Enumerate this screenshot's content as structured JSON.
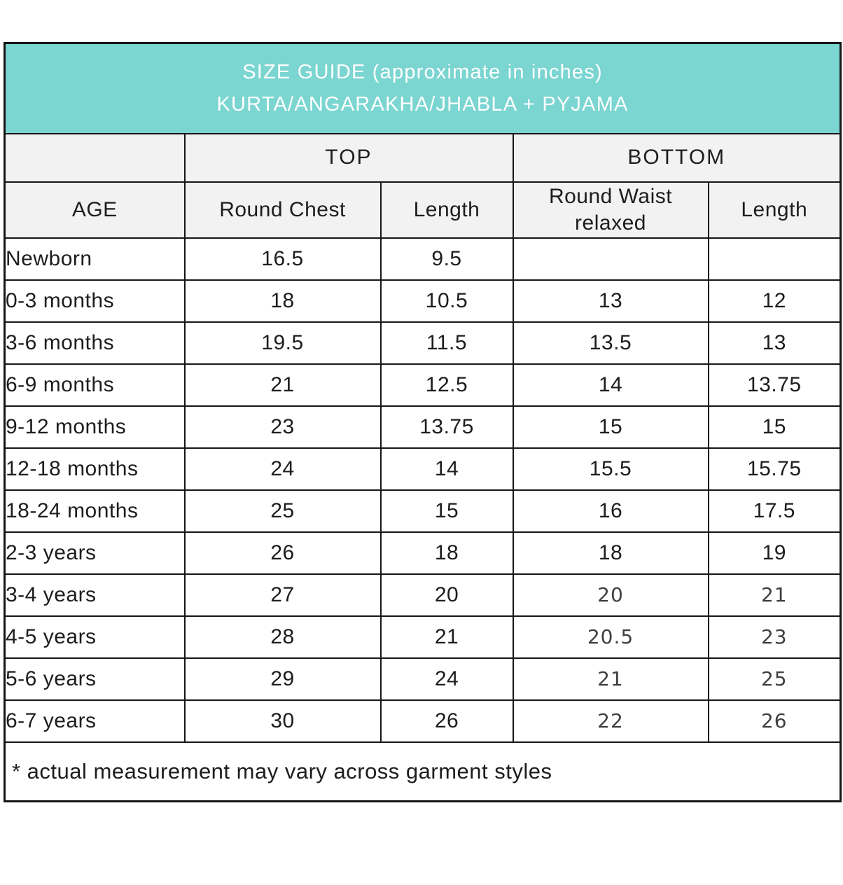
{
  "header": {
    "title_line1": "SIZE GUIDE (approximate in inches)",
    "title_line2": "KURTA/ANGARAKHA/JHABLA + PYJAMA"
  },
  "table": {
    "group_headers": {
      "top": "TOP",
      "bottom": "BOTTOM"
    },
    "columns": [
      "AGE",
      "Round Chest",
      "Length",
      "Round Waist relaxed",
      "Length"
    ],
    "rows": [
      {
        "age": "Newborn",
        "round_chest": "16.5",
        "top_length": "9.5",
        "round_waist": "",
        "bottom_length": ""
      },
      {
        "age": "0-3 months",
        "round_chest": "18",
        "top_length": "10.5",
        "round_waist": "13",
        "bottom_length": "12"
      },
      {
        "age": "3-6 months",
        "round_chest": "19.5",
        "top_length": "11.5",
        "round_waist": "13.5",
        "bottom_length": "13"
      },
      {
        "age": "6-9 months",
        "round_chest": "21",
        "top_length": "12.5",
        "round_waist": "14",
        "bottom_length": "13.75"
      },
      {
        "age": "9-12 months",
        "round_chest": "23",
        "top_length": "13.75",
        "round_waist": "15",
        "bottom_length": "15"
      },
      {
        "age": "12-18 months",
        "round_chest": "24",
        "top_length": "14",
        "round_waist": "15.5",
        "bottom_length": "15.75"
      },
      {
        "age": "18-24 months",
        "round_chest": "25",
        "top_length": "15",
        "round_waist": "16",
        "bottom_length": "17.5"
      },
      {
        "age": "2-3 years",
        "round_chest": "26",
        "top_length": "18",
        "round_waist": "18",
        "bottom_length": "19"
      },
      {
        "age": "3-4 years",
        "round_chest": "27",
        "top_length": "20",
        "round_waist": "20",
        "bottom_length": "21"
      },
      {
        "age": "4-5 years",
        "round_chest": "28",
        "top_length": "21",
        "round_waist": "20.5",
        "bottom_length": "23"
      },
      {
        "age": "5-6 years",
        "round_chest": "29",
        "top_length": "24",
        "round_waist": "21",
        "bottom_length": "25"
      },
      {
        "age": "6-7 years",
        "round_chest": "30",
        "top_length": "26",
        "round_waist": "22",
        "bottom_length": "26"
      }
    ]
  },
  "footnote": "* actual measurement may vary across garment styles",
  "colors": {
    "accent_teal": "#7bd5d1",
    "header_gray": "#f2f2f2",
    "border_dark": "#161616",
    "text_primary": "#1d1d1d",
    "text_alt": "#3f3f3f",
    "title_text": "#ffffff"
  },
  "presentation": {
    "alt_font_rows": [
      8,
      9,
      10,
      11
    ]
  }
}
